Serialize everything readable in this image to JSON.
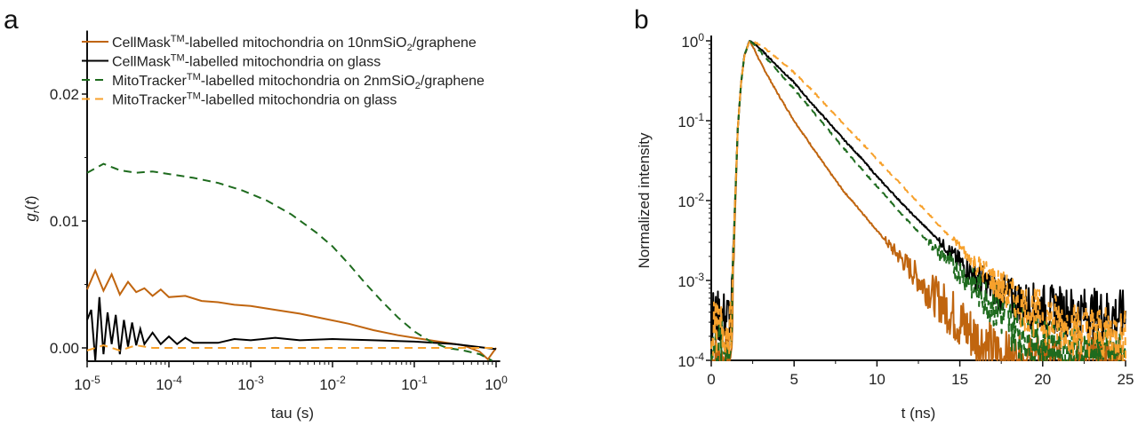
{
  "chart_data": [
    {
      "panel_label": "a",
      "type": "line",
      "xscale": "log",
      "xlabel": "tau (s)",
      "ylabel_parts": [
        {
          "t": "g",
          "i": true
        },
        {
          "t": "r",
          "sub": true,
          "i": true
        },
        {
          "t": "("
        },
        {
          "t": "t",
          "i": true
        },
        {
          "t": ")"
        }
      ],
      "xlim_log10": [
        -5,
        0.05
      ],
      "ylim": [
        -0.001,
        0.025
      ],
      "xticks": [
        {
          "base": "10",
          "exp": "-5",
          "v": -5
        },
        {
          "base": "10",
          "exp": "-4",
          "v": -4
        },
        {
          "base": "10",
          "exp": "-3",
          "v": -3
        },
        {
          "base": "10",
          "exp": "-2",
          "v": -2
        },
        {
          "base": "10",
          "exp": "-1",
          "v": -1
        },
        {
          "base": "10",
          "exp": "0",
          "v": 0
        }
      ],
      "yticks": [
        {
          "label": "0.00",
          "v": 0
        },
        {
          "label": "0.01",
          "v": 0.01
        },
        {
          "label": "0.02",
          "v": 0.02
        }
      ],
      "legend_position": "top",
      "series": [
        {
          "name_parts": [
            {
              "t": "CellMask"
            },
            {
              "t": "TM",
              "sup": true
            },
            {
              "t": "-labelled mitochondria on 10nmSiO"
            },
            {
              "t": "2",
              "sub": true
            },
            {
              "t": "/graphene"
            }
          ],
          "color": "#c0650f",
          "dash": false,
          "log10_x": [
            -5,
            -4.9,
            -4.8,
            -4.7,
            -4.6,
            -4.5,
            -4.4,
            -4.3,
            -4.2,
            -4.1,
            -4,
            -3.8,
            -3.6,
            -3.4,
            -3.2,
            -3,
            -2.7,
            -2.4,
            -2.1,
            -1.8,
            -1.5,
            -1.2,
            -1,
            -0.7,
            -0.4,
            -0.2,
            -0.1,
            0
          ],
          "y": [
            0.0046,
            0.0061,
            0.0045,
            0.0058,
            0.0042,
            0.0052,
            0.0044,
            0.0047,
            0.0041,
            0.0046,
            0.004,
            0.0041,
            0.0037,
            0.0036,
            0.0034,
            0.0033,
            0.003,
            0.0027,
            0.0023,
            0.0019,
            0.0014,
            0.001,
            0.0008,
            0.0005,
            0.0002,
            -0.0003,
            -0.0009,
            0.0
          ]
        },
        {
          "name_parts": [
            {
              "t": "CellMask"
            },
            {
              "t": "TM",
              "sup": true
            },
            {
              "t": "-labelled mitochondria on glass"
            }
          ],
          "color": "#000000",
          "dash": false,
          "log10_x": [
            -5,
            -4.95,
            -4.9,
            -4.85,
            -4.8,
            -4.75,
            -4.7,
            -4.65,
            -4.6,
            -4.55,
            -4.5,
            -4.45,
            -4.4,
            -4.35,
            -4.3,
            -4.2,
            -4.1,
            -4,
            -3.9,
            -3.8,
            -3.7,
            -3.6,
            -3.4,
            -3.2,
            -3,
            -2.7,
            -2.4,
            -2,
            -1.5,
            -1,
            -0.5,
            0
          ],
          "y": [
            0.0022,
            0.003,
            -0.001,
            0.004,
            -0.0005,
            0.0028,
            0.0003,
            0.0026,
            -0.0005,
            0.0022,
            0.0001,
            0.002,
            0.0002,
            0.0015,
            0.0003,
            0.0012,
            0.0003,
            0.0009,
            0.0003,
            0.0008,
            0.0004,
            0.0004,
            0.0004,
            0.0007,
            0.0006,
            0.0008,
            0.0006,
            0.0007,
            0.0006,
            0.0005,
            0.0003,
            -0.0001
          ]
        },
        {
          "name_parts": [
            {
              "t": "MitoTracker"
            },
            {
              "t": "TM",
              "sup": true
            },
            {
              "t": "-labelled mitochondria on 2nmSiO"
            },
            {
              "t": "2",
              "sub": true
            },
            {
              "t": "/graphene"
            }
          ],
          "color": "#1e6b1e",
          "dash": true,
          "log10_x": [
            -5,
            -4.8,
            -4.6,
            -4.4,
            -4.2,
            -4,
            -3.7,
            -3.4,
            -3.1,
            -2.8,
            -2.5,
            -2.2,
            -2,
            -1.8,
            -1.6,
            -1.4,
            -1.2,
            -1,
            -0.8,
            -0.6,
            -0.4,
            -0.2,
            -0.05
          ],
          "y": [
            0.0138,
            0.0145,
            0.014,
            0.0138,
            0.0139,
            0.0137,
            0.0134,
            0.013,
            0.0124,
            0.0116,
            0.0105,
            0.0091,
            0.008,
            0.0066,
            0.0051,
            0.0037,
            0.0024,
            0.0013,
            0.0005,
            0.0,
            -0.0002,
            -0.0005,
            -0.001
          ]
        },
        {
          "name_parts": [
            {
              "t": "MitoTracker"
            },
            {
              "t": "TM",
              "sup": true
            },
            {
              "t": "-labelled mitochondria on glass"
            }
          ],
          "color": "#f7a12c",
          "dash": true,
          "log10_x": [
            -5,
            -4.8,
            -4.6,
            -4.4,
            -4.2,
            -4,
            -3,
            -2,
            -1,
            -0.5,
            0
          ],
          "y": [
            -0.0002,
            0.0002,
            -0.0002,
            0.0002,
            0.0,
            0.0,
            0.0,
            0.0,
            0.0,
            0.0,
            0.0
          ]
        }
      ]
    },
    {
      "panel_label": "b",
      "type": "line",
      "yscale": "log",
      "xlabel": "t (ns)",
      "ylabel": "Normalized intensity",
      "xlim": [
        0,
        25
      ],
      "ylim_log10": [
        -4,
        0
      ],
      "xticks": [
        {
          "label": "0",
          "v": 0
        },
        {
          "label": "5",
          "v": 5
        },
        {
          "label": "10",
          "v": 10
        },
        {
          "label": "15",
          "v": 15
        },
        {
          "label": "20",
          "v": 20
        },
        {
          "label": "25",
          "v": 25
        }
      ],
      "yticks": [
        {
          "base": "10",
          "exp": "0",
          "v": 0
        },
        {
          "base": "10",
          "exp": "-1",
          "v": -1
        },
        {
          "base": "10",
          "exp": "-2",
          "v": -2
        },
        {
          "base": "10",
          "exp": "-3",
          "v": -3
        },
        {
          "base": "10",
          "exp": "-4",
          "v": -4
        }
      ],
      "series": [
        {
          "color": "#c0650f",
          "dash": false,
          "x": [
            0,
            1.2,
            1.4,
            1.6,
            1.8,
            2.0,
            2.3,
            2.6,
            3,
            4,
            5,
            6,
            7,
            8,
            9,
            10,
            11,
            12,
            13,
            14,
            15,
            16,
            17,
            18,
            19,
            20,
            22,
            25
          ],
          "y": [
            0.0001,
            0.0001,
            0.004,
            0.08,
            0.3,
            0.65,
            1,
            0.78,
            0.52,
            0.22,
            0.1,
            0.05,
            0.025,
            0.013,
            0.0075,
            0.0042,
            0.0024,
            0.0014,
            0.0008,
            0.0005,
            0.0003,
            0.00019,
            0.00013,
            0.0001,
            0.0001,
            0.0001,
            0.0001,
            0.0001
          ]
        },
        {
          "color": "#000000",
          "dash": false,
          "x": [
            0,
            1.2,
            1.4,
            1.6,
            1.8,
            2.0,
            2.3,
            2.6,
            3,
            4,
            5,
            6,
            7,
            8,
            9,
            10,
            11,
            12,
            13,
            14,
            15,
            16,
            17,
            18,
            19,
            20,
            22,
            25
          ],
          "y": [
            0.00035,
            0.00035,
            0.006,
            0.08,
            0.3,
            0.65,
            1,
            0.92,
            0.78,
            0.48,
            0.3,
            0.17,
            0.1,
            0.058,
            0.035,
            0.02,
            0.012,
            0.0072,
            0.0045,
            0.0028,
            0.0017,
            0.0011,
            0.0008,
            0.0006,
            0.0005,
            0.00045,
            0.0004,
            0.00035
          ]
        },
        {
          "color": "#1e6b1e",
          "dash": true,
          "x": [
            0,
            1.2,
            1.4,
            1.6,
            1.8,
            2.0,
            2.3,
            2.6,
            3,
            4,
            5,
            6,
            7,
            8,
            9,
            10,
            11,
            12,
            13,
            14,
            15,
            16,
            17,
            18,
            19,
            20,
            22,
            25
          ],
          "y": [
            0.00015,
            0.00015,
            0.006,
            0.08,
            0.3,
            0.65,
            1,
            0.9,
            0.72,
            0.42,
            0.25,
            0.14,
            0.08,
            0.045,
            0.026,
            0.015,
            0.0088,
            0.0052,
            0.0032,
            0.002,
            0.0013,
            0.0008,
            0.0005,
            0.0003,
            0.0002,
            0.00016,
            0.00013,
            0.0001
          ]
        },
        {
          "color": "#f7a12c",
          "dash": true,
          "x": [
            0,
            1.2,
            1.4,
            1.6,
            1.8,
            2.0,
            2.3,
            2.6,
            3,
            4,
            5,
            6,
            7,
            8,
            9,
            10,
            11,
            12,
            13,
            14,
            15,
            16,
            17,
            18,
            19,
            20,
            22,
            25
          ],
          "y": [
            0.00025,
            0.00025,
            0.006,
            0.08,
            0.3,
            0.65,
            1,
            0.97,
            0.88,
            0.6,
            0.4,
            0.25,
            0.15,
            0.09,
            0.055,
            0.033,
            0.02,
            0.012,
            0.0072,
            0.0043,
            0.0026,
            0.0016,
            0.001,
            0.00065,
            0.00045,
            0.00035,
            0.00025,
            0.0002
          ]
        }
      ]
    }
  ]
}
